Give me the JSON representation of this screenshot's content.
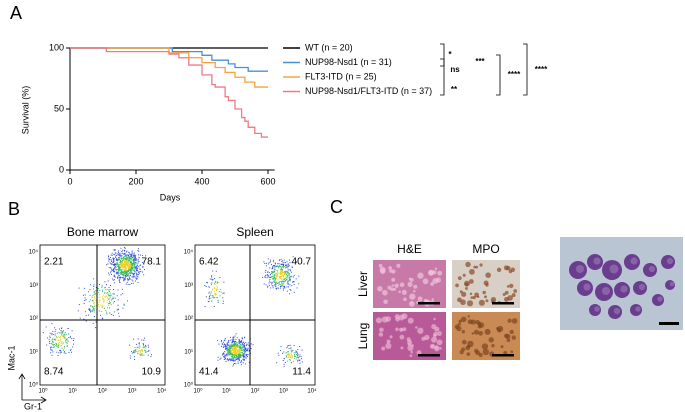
{
  "chart_data": {
    "type": "line",
    "step": true,
    "panel_label": "A",
    "xlabel": "Days",
    "ylabel": "Survival (%)",
    "x": [
      0,
      110,
      300,
      310,
      330,
      360,
      400,
      430,
      440,
      470,
      480,
      500,
      520,
      530,
      540,
      560,
      580,
      600
    ],
    "series": [
      {
        "name": "WT (n = 20)",
        "color": "#000000",
        "values": [
          100,
          100,
          100,
          100,
          100,
          100,
          100,
          100,
          100,
          100,
          100,
          100,
          100,
          100,
          100,
          100,
          100,
          100
        ]
      },
      {
        "name": "NUP98-Nsd1 (n = 31)",
        "color": "#4a90d9",
        "values": [
          100,
          100,
          100,
          97,
          97,
          97,
          94,
          90,
          90,
          90,
          87,
          84,
          84,
          84,
          81,
          81,
          81,
          81
        ]
      },
      {
        "name": "FLT3-ITD (n = 25)",
        "color": "#f5a33a",
        "values": [
          100,
          100,
          96,
          96,
          96,
          92,
          88,
          88,
          84,
          80,
          80,
          76,
          76,
          72,
          72,
          68,
          68,
          68
        ]
      },
      {
        "name": "NUP98-Nsd1/FLT3-ITD (n = 37)",
        "color": "#f07a86",
        "values": [
          100,
          97,
          95,
          95,
          92,
          86,
          78,
          70,
          68,
          60,
          57,
          50,
          43,
          40,
          35,
          30,
          27,
          27
        ]
      }
    ],
    "xlim": [
      0,
      620
    ],
    "xticks": [
      0,
      200,
      400,
      600
    ],
    "ylim": [
      0,
      100
    ],
    "yticks": [
      0,
      50,
      100
    ],
    "annotations": [
      "*",
      "ns",
      "**",
      "***",
      "****",
      "****"
    ]
  },
  "flow": {
    "panel_label": "B",
    "ylabel": "Mac-1",
    "xlabel": "Gr-1",
    "tick_labels": [
      "10⁰",
      "10¹",
      "10²",
      "10³",
      "10⁴"
    ],
    "plots": [
      {
        "title": "Bone marrow",
        "quadrants": [
          "2.21",
          "78.1",
          "8.74",
          "10.9"
        ]
      },
      {
        "title": "Spleen",
        "quadrants": [
          "6.42",
          "40.7",
          "41.4",
          "11.4"
        ]
      }
    ]
  },
  "histology": {
    "panel_label": "C",
    "columns": [
      "H&E",
      "MPO"
    ],
    "rows": [
      "Liver",
      "Lung"
    ]
  }
}
